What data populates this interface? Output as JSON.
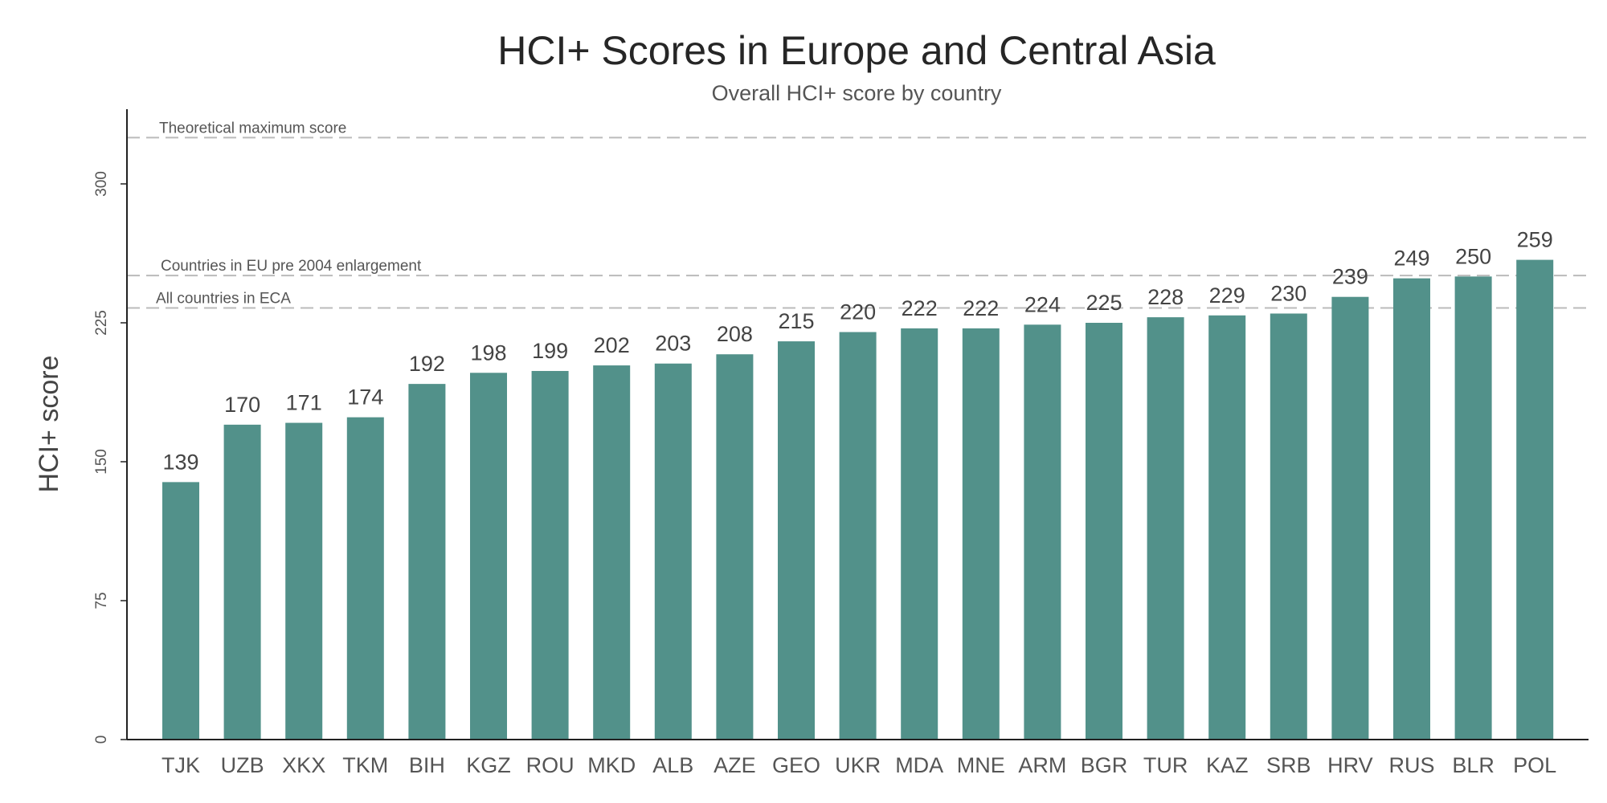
{
  "chart_data": {
    "type": "bar",
    "title": "HCI+ Scores in Europe and Central Asia",
    "subtitle": "Overall HCI+ score by country",
    "xlabel": "",
    "ylabel": "HCI+ score",
    "ylim": [
      0,
      330
    ],
    "yticks": [
      0,
      75,
      150,
      225,
      300
    ],
    "grid": false,
    "bar_color": "#52918a",
    "categories": [
      "TJK",
      "UZB",
      "XKX",
      "TKM",
      "BIH",
      "KGZ",
      "ROU",
      "MKD",
      "ALB",
      "AZE",
      "GEO",
      "UKR",
      "MDA",
      "MNE",
      "ARM",
      "BGR",
      "TUR",
      "KAZ",
      "SRB",
      "HRV",
      "RUS",
      "BLR",
      "POL"
    ],
    "values": [
      139,
      170,
      171,
      174,
      192,
      198,
      199,
      202,
      203,
      208,
      215,
      220,
      222,
      222,
      224,
      225,
      228,
      229,
      230,
      239,
      249,
      250,
      259
    ],
    "reference_lines": [
      {
        "label": "Theoretical maximum score",
        "value": 325
      },
      {
        "label": "Countries in EU pre 2004 enlargement",
        "value": 250.5
      },
      {
        "label": "All countries in ECA",
        "value": 233
      }
    ]
  }
}
